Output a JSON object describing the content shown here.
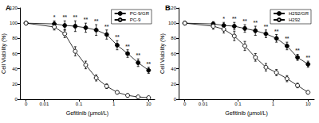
{
  "chart_data": [
    {
      "type": "line",
      "title": "A",
      "x_label": "Gefitinib (μmol/L)",
      "y_label": "Cell Viability (%)",
      "log": "x",
      "grid": false,
      "legend": "upper right",
      "x": [
        0.003,
        0.0195,
        0.039,
        0.078,
        0.156,
        0.3125,
        0.625,
        1.25,
        2.5,
        5,
        10
      ],
      "xlim": [
        0.002,
        15
      ],
      "xticks": [
        {
          "value": 0.003,
          "label": "0"
        },
        0.01,
        0.1,
        1,
        10
      ],
      "ylim": [
        0,
        120
      ],
      "yticks": [
        0,
        20,
        40,
        60,
        80,
        100,
        120
      ],
      "series": [
        {
          "name": "PC-9/GR",
          "color": "#000000",
          "marker": "circle",
          "values": [
            100,
            99,
            97,
            96,
            94,
            91,
            85,
            71,
            60,
            48,
            38
          ],
          "errors": [
            2,
            4,
            6,
            7,
            6,
            7,
            6,
            6,
            5,
            5,
            4
          ],
          "annotations": [
            {
              "x": 0.0195,
              "y": 99,
              "text": "*"
            },
            {
              "x": 0.039,
              "y": 97,
              "text": "**"
            },
            {
              "x": 0.078,
              "y": 96,
              "text": "**"
            },
            {
              "x": 0.156,
              "y": 94,
              "text": "**"
            },
            {
              "x": 0.3125,
              "y": 91,
              "text": "**"
            },
            {
              "x": 0.625,
              "y": 85,
              "text": "**"
            },
            {
              "x": 1.25,
              "y": 71,
              "text": "**"
            },
            {
              "x": 2.5,
              "y": 60,
              "text": "**"
            },
            {
              "x": 5,
              "y": 48,
              "text": "**"
            },
            {
              "x": 10,
              "y": 38,
              "text": "**"
            }
          ]
        },
        {
          "name": "PC-9",
          "color": "#000000",
          "marker": "open_circle",
          "values": [
            100,
            95,
            86,
            63,
            45,
            28,
            17,
            9,
            5,
            3,
            2
          ],
          "errors": [
            2,
            4,
            5,
            6,
            5,
            4,
            3,
            2,
            2,
            1,
            1
          ]
        }
      ]
    },
    {
      "type": "line",
      "title": "B",
      "x_label": "Gefitinib (μmol/L)",
      "y_label": "Cell Viability (%)",
      "log": "x",
      "grid": false,
      "legend": "upper right",
      "x": [
        0.003,
        0.0195,
        0.039,
        0.078,
        0.156,
        0.3125,
        0.625,
        1.25,
        2.5,
        5,
        10
      ],
      "xlim": [
        0.002,
        15
      ],
      "xticks": [
        {
          "value": 0.003,
          "label": "0"
        },
        0.01,
        0.1,
        1,
        10
      ],
      "ylim": [
        0,
        120
      ],
      "yticks": [
        0,
        20,
        40,
        60,
        80,
        100,
        120
      ],
      "series": [
        {
          "name": "H292/GR",
          "color": "#000000",
          "marker": "circle",
          "values": [
            100,
            99,
            97,
            96,
            93,
            90,
            86,
            80,
            70,
            55,
            46
          ],
          "errors": [
            2,
            3,
            4,
            5,
            5,
            6,
            5,
            5,
            5,
            4,
            4
          ],
          "annotations": [
            {
              "x": 0.039,
              "y": 97,
              "text": "*"
            },
            {
              "x": 0.078,
              "y": 96,
              "text": "**"
            },
            {
              "x": 0.156,
              "y": 93,
              "text": "**"
            },
            {
              "x": 0.3125,
              "y": 90,
              "text": "**"
            },
            {
              "x": 0.625,
              "y": 86,
              "text": "**"
            },
            {
              "x": 1.25,
              "y": 80,
              "text": "**"
            },
            {
              "x": 2.5,
              "y": 70,
              "text": "**"
            },
            {
              "x": 5,
              "y": 55,
              "text": "**"
            },
            {
              "x": 10,
              "y": 46,
              "text": "**"
            }
          ]
        },
        {
          "name": "H292",
          "color": "#000000",
          "marker": "open_circle",
          "values": [
            100,
            96,
            92,
            83,
            70,
            55,
            42,
            35,
            27,
            18,
            9
          ],
          "errors": [
            2,
            4,
            5,
            6,
            6,
            5,
            5,
            4,
            4,
            3,
            2
          ]
        }
      ]
    }
  ]
}
